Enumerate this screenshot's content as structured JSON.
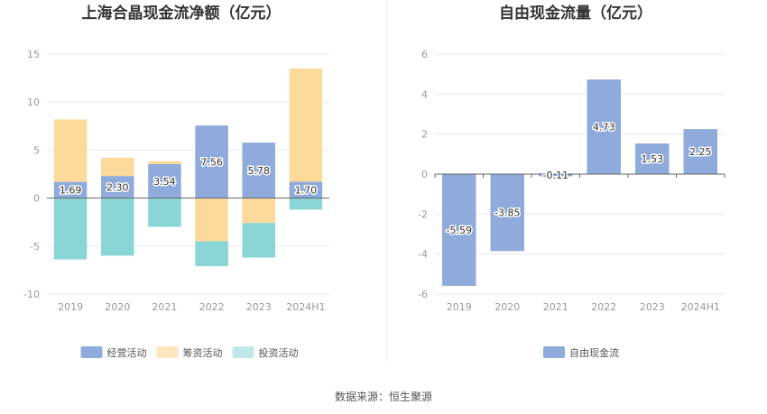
{
  "source_text": "数据来源：恒生聚源",
  "chart_data": [
    {
      "type": "bar",
      "stacked": true,
      "title": "上海合晶现金流净额（亿元）",
      "categories": [
        "2019",
        "2020",
        "2021",
        "2022",
        "2023",
        "2024H1"
      ],
      "ylim": [
        -10,
        15
      ],
      "yticks": [
        15,
        10,
        5,
        0,
        -5,
        -10
      ],
      "grid": true,
      "legend_position": "bottom",
      "series": [
        {
          "name": "经营活动",
          "color": "#8eabdb",
          "values": [
            1.69,
            2.3,
            3.54,
            7.56,
            5.78,
            1.7
          ],
          "labels": [
            "1.69",
            "2.30",
            "3.54",
            "7.56",
            "5.78",
            "1.70"
          ]
        },
        {
          "name": "筹资活动",
          "color": "#fdd99a",
          "values": [
            6.5,
            1.9,
            0.3,
            -4.5,
            -2.6,
            11.8
          ]
        },
        {
          "name": "投资活动",
          "color": "#8ad6d6",
          "values": [
            -6.4,
            -6.0,
            -3.0,
            -2.6,
            -3.6,
            -1.2
          ]
        }
      ]
    },
    {
      "type": "bar",
      "title": "自由现金流量（亿元）",
      "categories": [
        "2019",
        "2020",
        "2021",
        "2022",
        "2023",
        "2024H1"
      ],
      "ylim": [
        -6,
        6
      ],
      "yticks": [
        6,
        4,
        2,
        0,
        -2,
        -4,
        -6
      ],
      "grid": true,
      "legend_position": "bottom",
      "series": [
        {
          "name": "自由现金流",
          "color": "#8eabdb",
          "values": [
            -5.59,
            -3.85,
            -0.11,
            4.73,
            1.53,
            2.25
          ],
          "labels": [
            "-5.59",
            "-3.85",
            "-0.11",
            "4.73",
            "1.53",
            "2.25"
          ]
        }
      ]
    }
  ]
}
